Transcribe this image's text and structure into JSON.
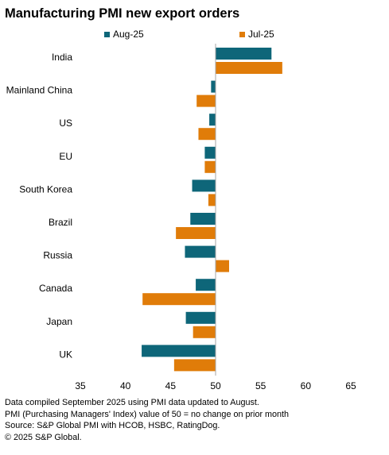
{
  "chart_data": {
    "type": "bar",
    "orientation": "horizontal",
    "title": "Manufacturing PMI new export orders",
    "categories": [
      "India",
      "Mainland China",
      "US",
      "EU",
      "South Korea",
      "Brazil",
      "Russia",
      "Canada",
      "Japan",
      "UK"
    ],
    "series": [
      {
        "name": "Aug-25",
        "color": "#0e6679",
        "values": [
          56.2,
          49.5,
          49.3,
          48.8,
          47.4,
          47.2,
          46.6,
          47.8,
          46.7,
          41.8
        ]
      },
      {
        "name": "Jul-25",
        "color": "#e07c09",
        "values": [
          57.4,
          47.9,
          48.1,
          48.8,
          49.2,
          45.6,
          51.5,
          41.9,
          47.5,
          45.4
        ]
      }
    ],
    "baseline": 50,
    "xlim": [
      35,
      65
    ],
    "xticks": [
      "35",
      "40",
      "45",
      "50",
      "55",
      "60",
      "65"
    ],
    "grid": false,
    "legend_position": "top"
  },
  "footnotes": [
    "Data compiled September 2025 using PMI data updated to August.",
    "PMI (Purchasing Managers' Index) value of 50 = no change on prior month",
    "Source: S&P Global PMI with HCOB, HSBC, RatingDog.",
    "© 2025 S&P Global."
  ]
}
